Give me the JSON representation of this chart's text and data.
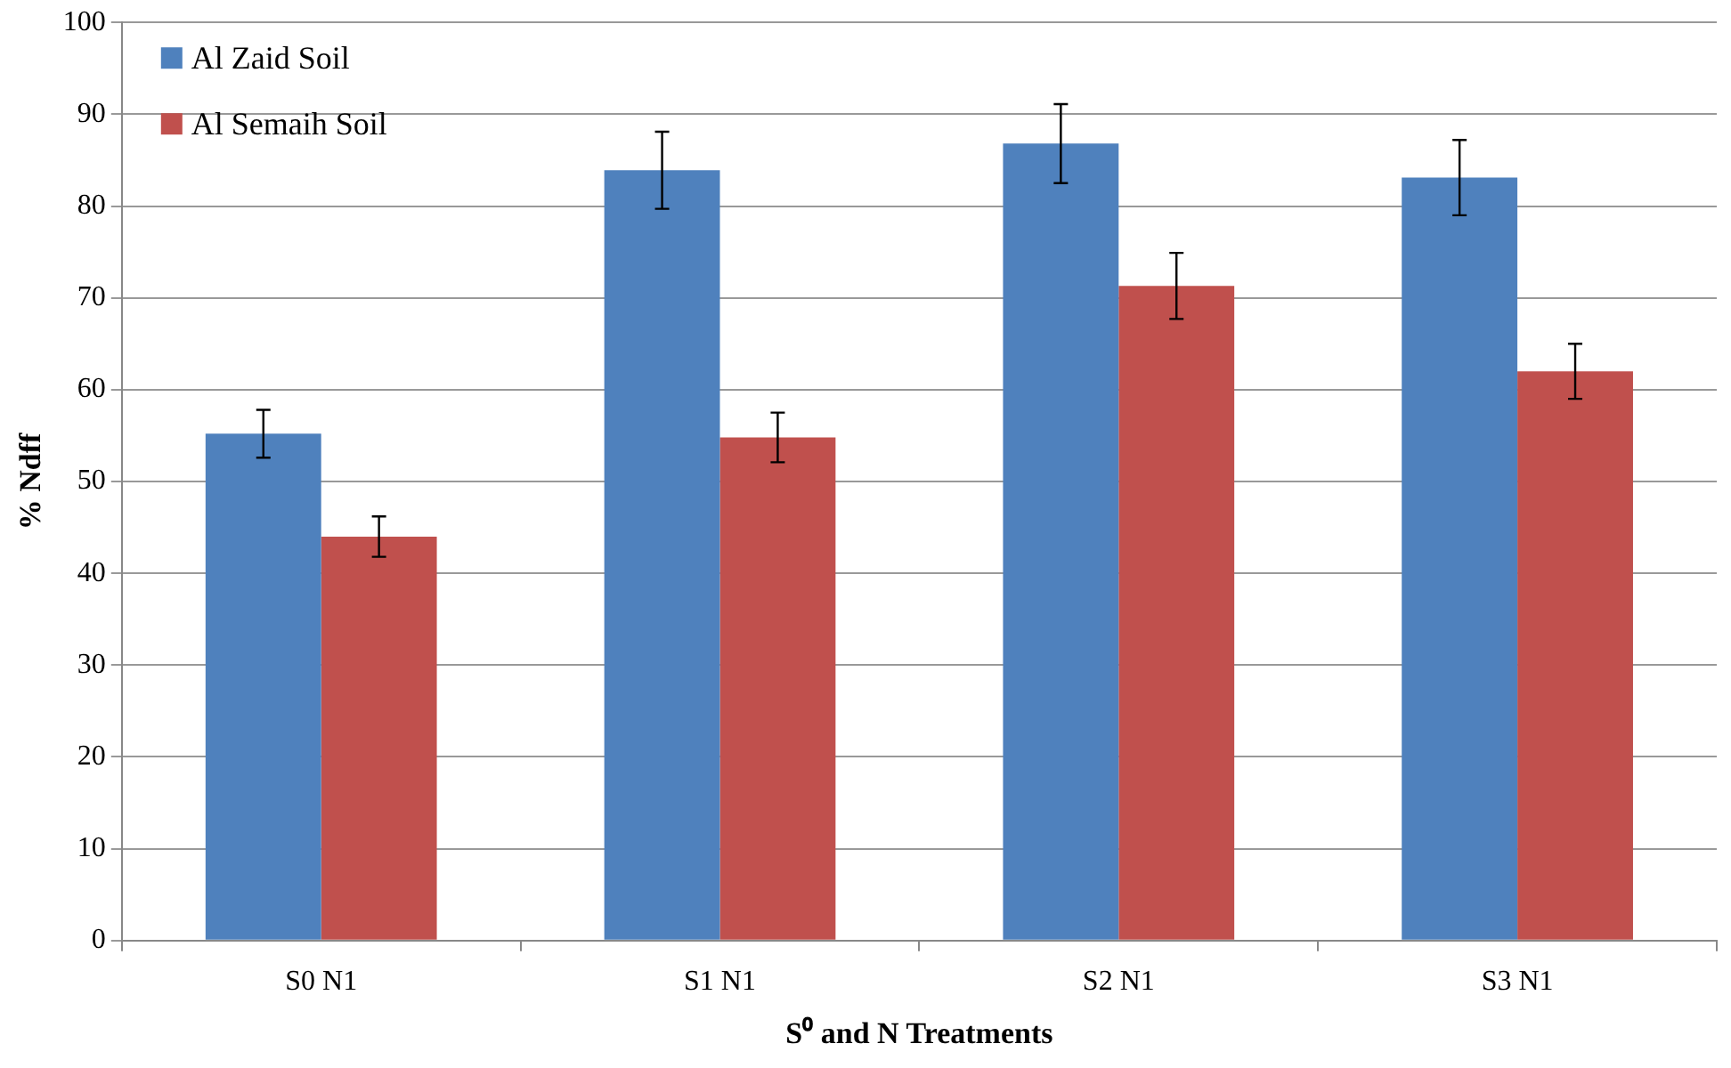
{
  "chart_data": {
    "type": "bar",
    "xlabel": "S⁰ and N Treatments",
    "ylabel": "% Ndff",
    "categories": [
      "S0 N1",
      "S1 N1",
      "S2 N1",
      "S3 N1"
    ],
    "series": [
      {
        "name": "Al Zaid Soil",
        "color": "#4f81bd",
        "values": [
          55.2,
          83.9,
          86.8,
          83.1
        ],
        "errors": [
          2.6,
          4.2,
          4.3,
          4.1
        ]
      },
      {
        "name": "Al Semaih Soil",
        "color": "#c0504d",
        "values": [
          44.0,
          54.8,
          71.3,
          62.0
        ],
        "errors": [
          2.2,
          2.7,
          3.6,
          3.0
        ]
      }
    ],
    "ylim": [
      0,
      100
    ],
    "yticks": [
      0,
      10,
      20,
      30,
      40,
      50,
      60,
      70,
      80,
      90,
      100
    ],
    "grid": "y",
    "legend": "top left"
  }
}
